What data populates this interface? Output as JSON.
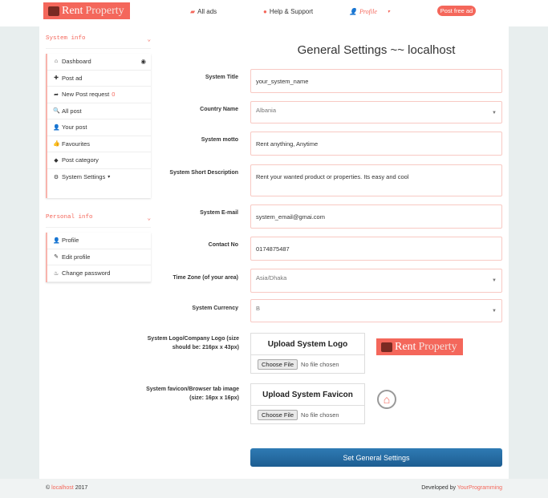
{
  "header": {
    "logo": {
      "word1": "Rent",
      "word2": "Property"
    },
    "nav": [
      {
        "label": "All ads",
        "icon": "folder-open-icon"
      },
      {
        "label": "Help & Support",
        "icon": "info-icon"
      },
      {
        "label": "Profile",
        "icon": "user-icon"
      }
    ],
    "post_button": "Post free ad"
  },
  "sidebar": {
    "system_heading": "System info",
    "system_items": [
      {
        "label": "Dashboard",
        "icon": "home-icon"
      },
      {
        "label": "Post ad",
        "icon": "plus-icon"
      },
      {
        "label": "New Post request",
        "badge": "0",
        "icon": "share-icon"
      },
      {
        "label": "All post",
        "icon": "zoom-icon"
      },
      {
        "label": "Your post",
        "icon": "user-icon"
      },
      {
        "label": "Favourites",
        "icon": "thumbs-up-icon"
      },
      {
        "label": "Post category",
        "icon": "tag-icon"
      },
      {
        "label": "System Settings",
        "icon": "gear-icon"
      }
    ],
    "personal_heading": "Personal info",
    "personal_items": [
      {
        "label": "Profile",
        "icon": "user-icon"
      },
      {
        "label": "Edit profile",
        "icon": "edit-icon"
      },
      {
        "label": "Change password",
        "icon": "fire-icon"
      }
    ]
  },
  "form": {
    "title": "General Settings ~~ localhost",
    "system_title": {
      "label": "System Title",
      "value": "your_system_name"
    },
    "country": {
      "label": "Country Name",
      "value": "Albania"
    },
    "motto": {
      "label": "System motto",
      "value": "Rent anything, Anytime"
    },
    "short_desc": {
      "label": "System Short Description",
      "value": "Rent your wanted product or properties. Its easy and cool"
    },
    "email": {
      "label": "System E-mail",
      "value": "system_email@gmai.com"
    },
    "contact": {
      "label": "Contact No",
      "value": "0174875487"
    },
    "timezone": {
      "label": "Time Zone (of your area)",
      "value": "Asia/Dhaka"
    },
    "currency": {
      "label": "System Currency",
      "value": "B"
    },
    "logo": {
      "label": "System Logo/Company Logo (size should be: 216px x 43px)",
      "title": "Upload System Logo",
      "choose": "Choose File",
      "status": "No file chosen"
    },
    "favicon": {
      "label": "System favicon/Browser tab image (size: 16px x 16px)",
      "title": "Upload System Favicon",
      "choose": "Choose File",
      "status": "No file chosen"
    },
    "submit": "Set General Settings"
  },
  "footer": {
    "copyright": "©",
    "site": "localhost",
    "year": "2017",
    "dev_prefix": "Developed by",
    "dev": "YourProgramming"
  },
  "colors": {
    "accent": "#f4675b",
    "button": "#2169a4"
  }
}
